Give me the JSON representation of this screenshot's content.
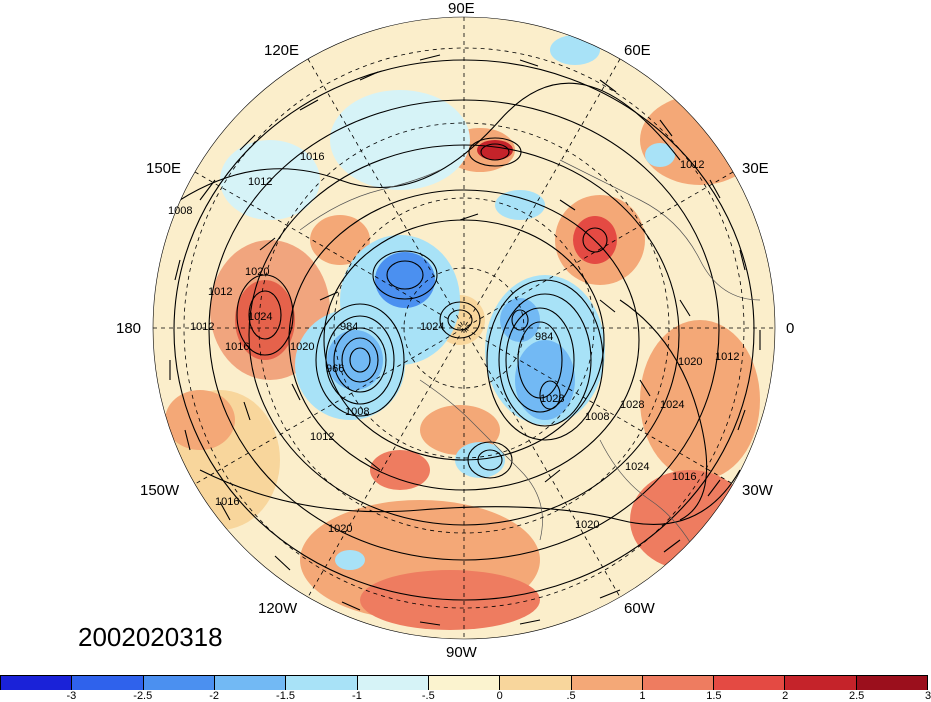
{
  "timestamp": "2002020318",
  "longitude_labels": {
    "e90": "90E",
    "e120": "120E",
    "e60": "60E",
    "e150": "150E",
    "e30": "30E",
    "w180": "180",
    "zero": "0",
    "w150": "150W",
    "w30": "30W",
    "w120": "120W",
    "w60": "60W",
    "w90": "90W"
  },
  "contour_labels": [
    "1012",
    "1016",
    "1012",
    "1008",
    "1020",
    "1024",
    "1012",
    "1016",
    "1020",
    "966",
    "984",
    "1008",
    "1012",
    "1024",
    "984",
    "1028",
    "1024",
    "1020",
    "1012",
    "1008",
    "1028",
    "1024",
    "1016",
    "1020",
    "1020",
    "1016",
    "1012"
  ],
  "colorbar": {
    "colors": [
      "#1a22d8",
      "#2f62ec",
      "#4b90f0",
      "#72b9f4",
      "#a8e2f7",
      "#d6f3f7",
      "#fbf3cf",
      "#f8d69c",
      "#f4a877",
      "#ee7c60",
      "#e44a43",
      "#c5232a",
      "#9b0f1c"
    ],
    "tick_labels": [
      "-3",
      "-2.5",
      "-2",
      "-1.5",
      "-1",
      "-.5",
      "0",
      ".5",
      "1",
      "1.5",
      "2",
      "2.5",
      "3"
    ]
  }
}
